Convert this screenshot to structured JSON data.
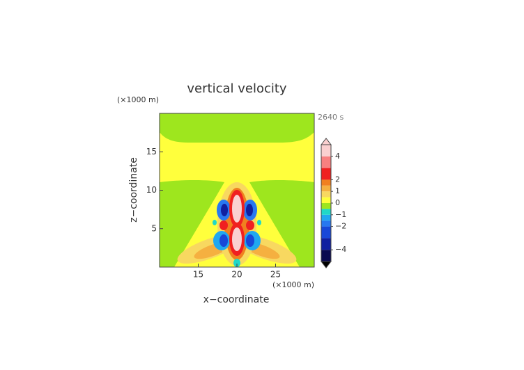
{
  "chart_data": {
    "type": "contour",
    "title": "vertical velocity",
    "time_label": "2640 s",
    "xlabel": "x−coordinate",
    "ylabel": "z−coordinate",
    "x_unit": "(×1000 m)",
    "y_unit": "(×1000 m)",
    "xlim": [
      10,
      30
    ],
    "xticks": [
      15,
      20,
      25
    ],
    "ylim": [
      0,
      20
    ],
    "yticks": [
      5,
      10,
      15
    ],
    "levels": [
      -5,
      -4,
      -3,
      -2,
      -1.5,
      -1,
      -0.5,
      0,
      0.5,
      1,
      1.5,
      2,
      3,
      4,
      5
    ],
    "level_colors": [
      "#0a0a50",
      "#1020a0",
      "#1848d8",
      "#2878f0",
      "#20a8f0",
      "#20d8c8",
      "#9ee61e",
      "#ffff3c",
      "#f8d860",
      "#f5b040",
      "#f08020",
      "#f02020",
      "#f88080",
      "#fad0d0"
    ],
    "colorbar_ticks": [
      {
        "value": -4,
        "label": "−4"
      },
      {
        "value": -2,
        "label": "−2"
      },
      {
        "value": -1,
        "label": "−1"
      },
      0,
      1,
      2,
      4
    ]
  }
}
